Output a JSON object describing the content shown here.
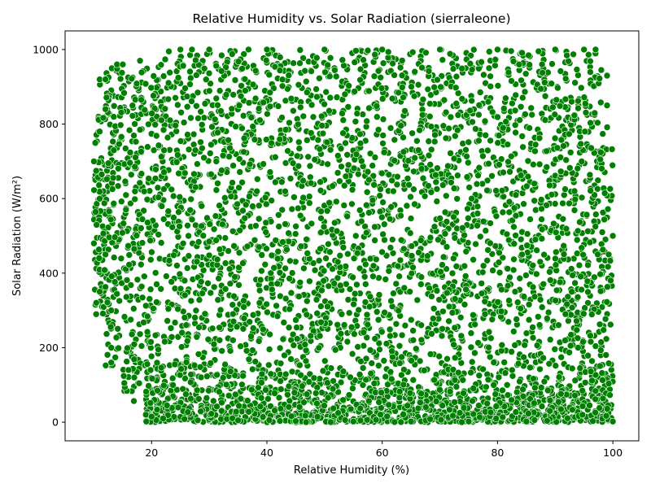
{
  "chart_data": {
    "type": "scatter",
    "title": "Relative Humidity vs. Solar Radiation (sierraleone)",
    "xlabel": "Relative Humidity (%)",
    "ylabel": "Solar Radiation (W/m²)",
    "xlim": [
      5,
      104.5
    ],
    "ylim": [
      -50,
      1050
    ],
    "xticks": [
      20,
      40,
      60,
      80,
      100
    ],
    "yticks": [
      0,
      200,
      400,
      600,
      800,
      1000
    ],
    "grid": false,
    "legend": "none",
    "marker_color": "#007f00",
    "marker_edge_color": "#ffffff",
    "point_density_description_regions": {
      "x_range": [
        9.9,
        100
      ],
      "y_range": [
        0,
        1000
      ]
    },
    "series": [
      {
        "points": [
          [
            10,
            700
          ],
          [
            11,
            920
          ],
          [
            12,
            920
          ],
          [
            13,
            160
          ],
          [
            13,
            200
          ],
          [
            14,
            960
          ],
          [
            15,
            960
          ],
          [
            16,
            140
          ],
          [
            17,
            120
          ],
          [
            18,
            970
          ],
          [
            19,
            20
          ],
          [
            20,
            15
          ],
          [
            22,
            10
          ],
          [
            23,
            995
          ],
          [
            25,
            1000
          ],
          [
            27,
            1000
          ],
          [
            28,
            5
          ],
          [
            30,
            1000
          ],
          [
            35,
            5
          ],
          [
            40,
            1000
          ],
          [
            45,
            3
          ],
          [
            50,
            1000
          ],
          [
            55,
            2
          ],
          [
            60,
            1000
          ],
          [
            65,
            2
          ],
          [
            70,
            1000
          ],
          [
            75,
            2
          ],
          [
            80,
            1000
          ],
          [
            85,
            2
          ],
          [
            90,
            1000
          ],
          [
            95,
            1000
          ],
          [
            97,
            1000
          ],
          [
            98,
            945
          ],
          [
            99,
            930
          ],
          [
            99,
            850
          ],
          [
            100,
            500
          ],
          [
            100,
            2
          ],
          [
            11,
            350
          ],
          [
            12,
            450
          ],
          [
            11,
            600
          ],
          [
            13,
            300
          ],
          [
            10,
            480
          ],
          [
            11,
            780
          ],
          [
            12,
            840
          ]
        ]
      }
    ]
  }
}
